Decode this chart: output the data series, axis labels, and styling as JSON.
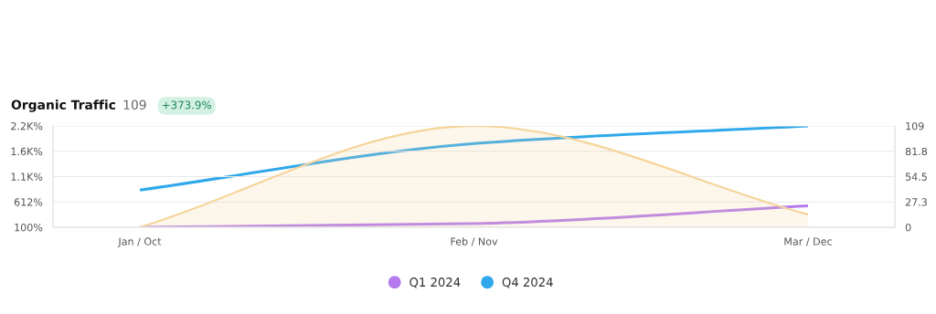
{
  "chart_data": {
    "type": "line",
    "title": "Organic Traffic",
    "annotations": [
      "109",
      "+373.9%"
    ],
    "categories": [
      "Jan / Oct",
      "Feb / Nov",
      "Mar / Dec"
    ],
    "series": [
      {
        "type": "area",
        "color": "#f5d49a",
        "values": [
          100,
          2150,
          360
        ]
      },
      {
        "name": "Q1 2024",
        "color": "#b57bee",
        "axis": "y2",
        "values": [
          0,
          4,
          23
        ]
      },
      {
        "name": "Q4 2024",
        "color": "#2fa9eb",
        "axis": "y2",
        "values": [
          40,
          90,
          109
        ]
      }
    ],
    "ylim": [
      100,
      2150
    ],
    "yticks": [
      {
        "value": 100,
        "label": "100%"
      },
      {
        "value": 612.5,
        "label": "612%"
      },
      {
        "value": 1125,
        "label": "1.1K%"
      },
      {
        "value": 1637.5,
        "label": "1.6K%"
      },
      {
        "value": 2150,
        "label": "2.2K%"
      }
    ],
    "y2lim": [
      0,
      109
    ],
    "y2ticks": [
      0,
      27.3,
      54.5,
      81.8,
      109
    ],
    "grid": "y",
    "legend": "bottom",
    "line_style": "solid"
  }
}
